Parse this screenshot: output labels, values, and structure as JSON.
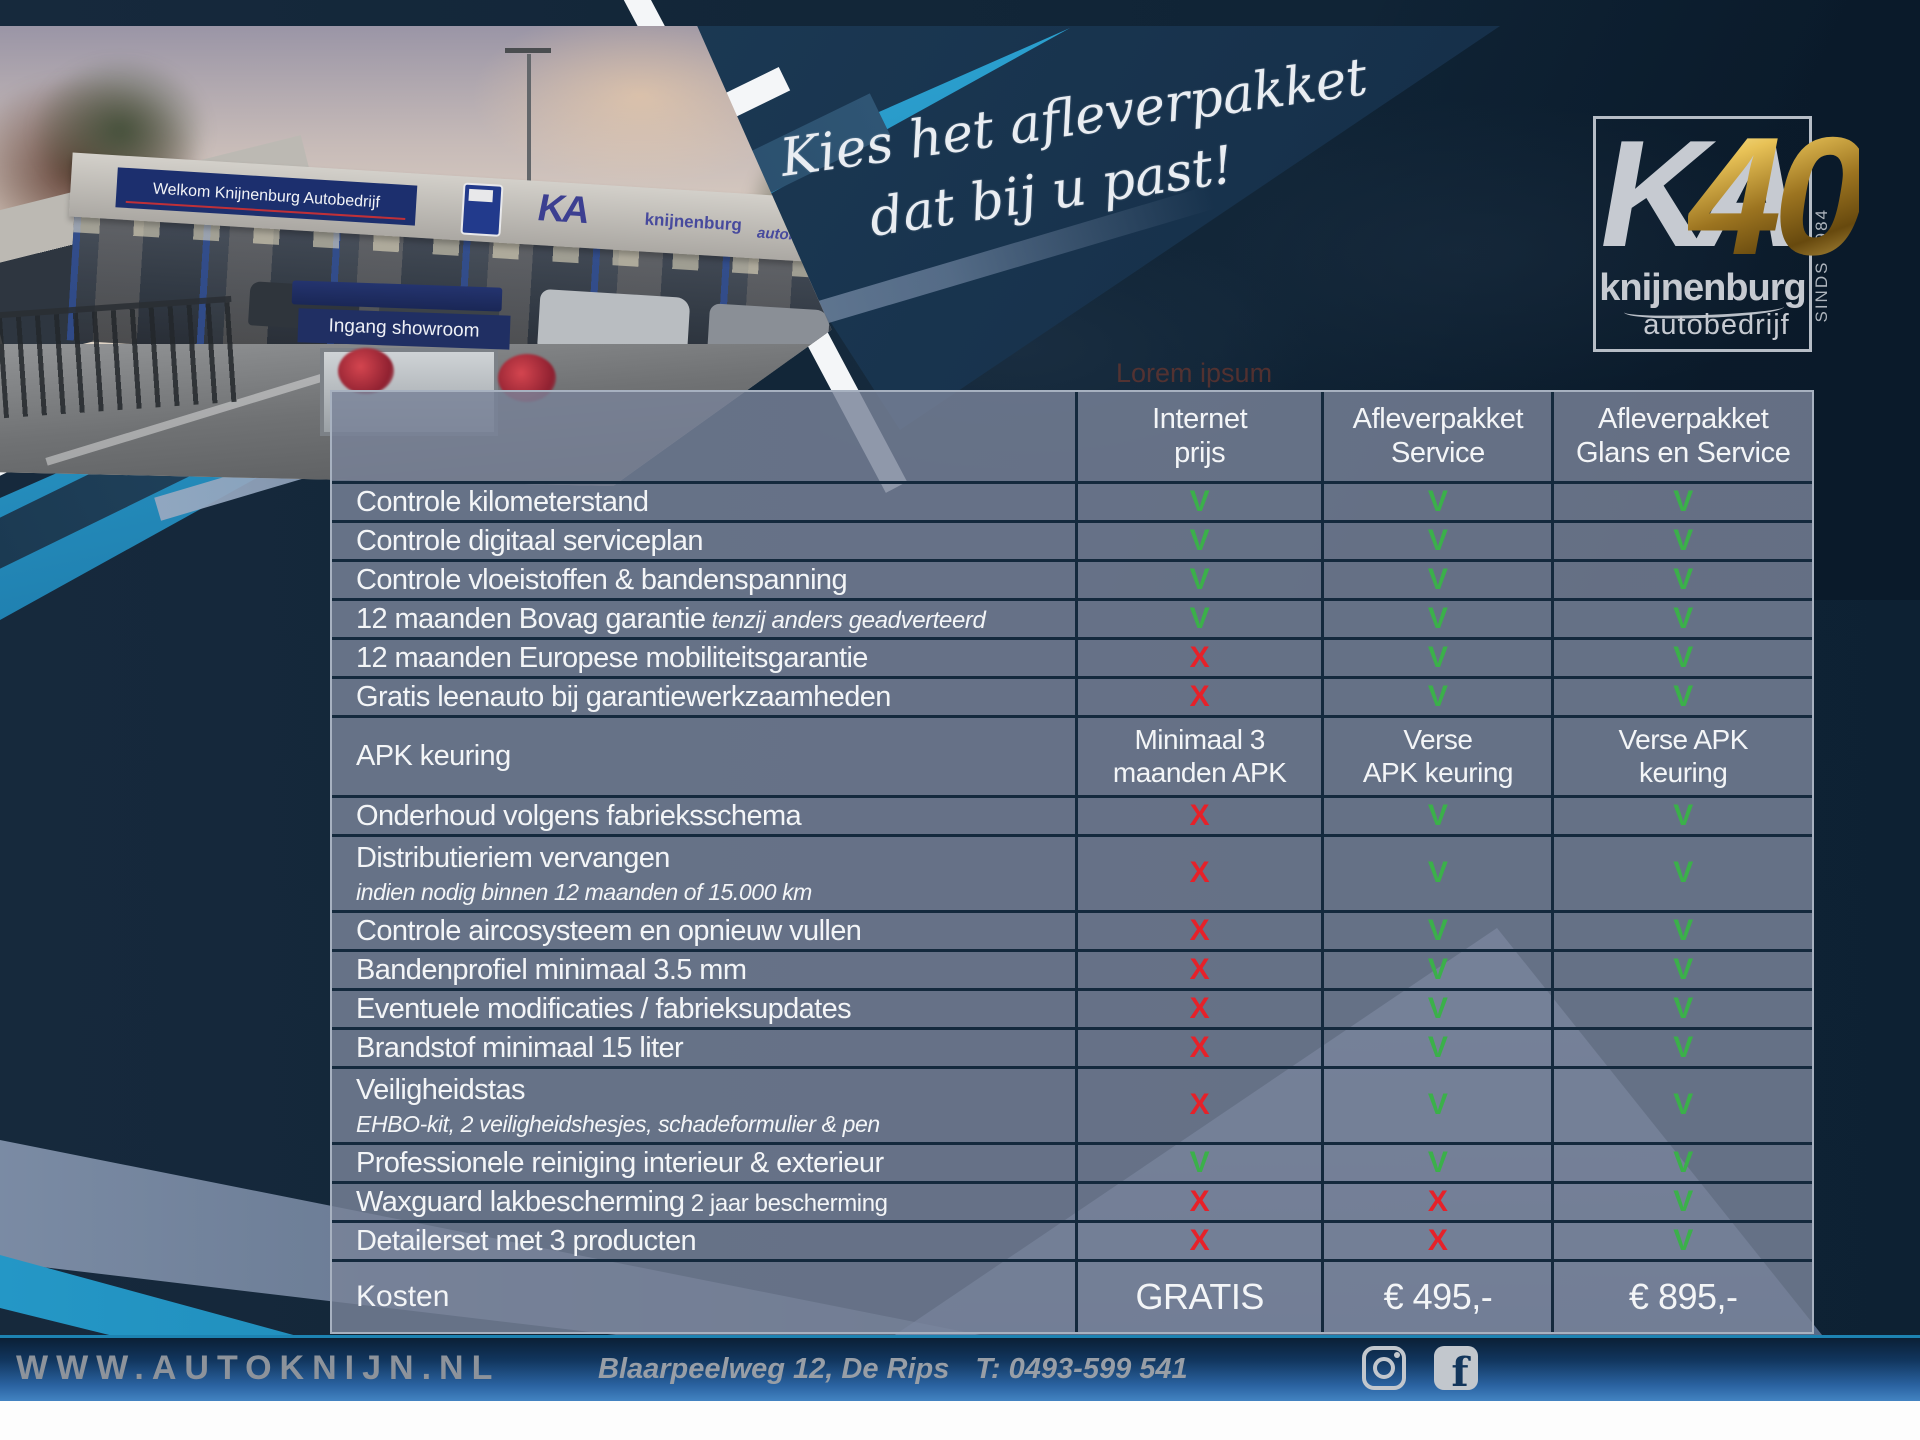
{
  "headline": {
    "line1": "Kies het afleverpakket",
    "line2": "dat bij u past!"
  },
  "watermark": "Lorem ipsum",
  "brand": {
    "logo_ka": "KA",
    "logo_40": "40",
    "logo_name": "knijnenburg",
    "logo_sub": "autobedrijf",
    "logo_since": "SINDS 1984"
  },
  "photo": {
    "sign_welcome": "Welkom Knijnenburg Autobedrijf",
    "sign_entrance": "Ingang showroom",
    "facade_ka": "KA",
    "facade_name": "knijnenburg",
    "facade_sub": "autobedrijf"
  },
  "table": {
    "check_symbol": "V",
    "cross_symbol": "X",
    "columns": [
      "",
      "Internet\nprijs",
      "Afleverpakket\nService",
      "Afleverpakket\nGlans en Service"
    ],
    "rows": [
      {
        "label": "Controle kilometerstand",
        "cells": [
          "V",
          "V",
          "V"
        ]
      },
      {
        "label": "Controle digitaal serviceplan",
        "cells": [
          "V",
          "V",
          "V"
        ]
      },
      {
        "label": "Controle vloeistoffen & bandenspanning",
        "cells": [
          "V",
          "V",
          "V"
        ]
      },
      {
        "label": "12 maanden Bovag garantie",
        "note": "tenzij anders geadverteerd",
        "note_italic": true,
        "cells": [
          "V",
          "V",
          "V"
        ]
      },
      {
        "label": "12 maanden Europese mobiliteitsgarantie",
        "cells": [
          "X",
          "V",
          "V"
        ]
      },
      {
        "label": "Gratis leenauto bij garantiewerkzaamheden",
        "cells": [
          "X",
          "V",
          "V"
        ]
      },
      {
        "label": "APK keuring",
        "kind": "tall",
        "cells": [
          "Minimaal 3\nmaanden APK",
          "Verse\nAPK keuring",
          "Verse APK\nkeuring"
        ]
      },
      {
        "label": "Onderhoud volgens fabrieksschema",
        "cells": [
          "X",
          "V",
          "V"
        ]
      },
      {
        "label": "Distributieriem vervangen",
        "sub": "indien nodig binnen 12 maanden of 15.000 km",
        "cells": [
          "X",
          "V",
          "V"
        ]
      },
      {
        "label": "Controle aircosysteem en opnieuw vullen",
        "cells": [
          "X",
          "V",
          "V"
        ]
      },
      {
        "label": "Bandenprofiel minimaal 3.5 mm",
        "cells": [
          "X",
          "V",
          "V"
        ]
      },
      {
        "label": "Eventuele modificaties / fabrieksupdates",
        "cells": [
          "X",
          "V",
          "V"
        ]
      },
      {
        "label": "Brandstof minimaal 15 liter",
        "cells": [
          "X",
          "V",
          "V"
        ]
      },
      {
        "label": "Veiligheidstas",
        "sub": "EHBO-kit, 2 veiligheidshesjes, schadeformulier & pen",
        "cells": [
          "X",
          "V",
          "V"
        ]
      },
      {
        "label": "Professionele reiniging interieur & exterieur",
        "cells": [
          "V",
          "V",
          "V"
        ]
      },
      {
        "label": "Waxguard lakbescherming",
        "note": "2 jaar bescherming",
        "note_italic": false,
        "cells": [
          "X",
          "X",
          "V"
        ]
      },
      {
        "label": "Detailerset met 3 producten",
        "cells": [
          "X",
          "X",
          "V"
        ]
      },
      {
        "label": "Kosten",
        "kind": "price",
        "cells": [
          "GRATIS",
          "€ 495,-",
          "€ 895,-"
        ]
      }
    ]
  },
  "footer": {
    "website": "WWW.AUTOKNIJN.NL",
    "address": "Blaarpeelweg 12, De Rips",
    "phone": "T: 0493-599 541"
  },
  "colors": {
    "check_green": "#3bb04a",
    "cross_red": "#e62129",
    "accent_cyan": "#1e86b6",
    "gold": "#c9a227",
    "table_cell": "#79839",
    "navy": "#13283c"
  }
}
